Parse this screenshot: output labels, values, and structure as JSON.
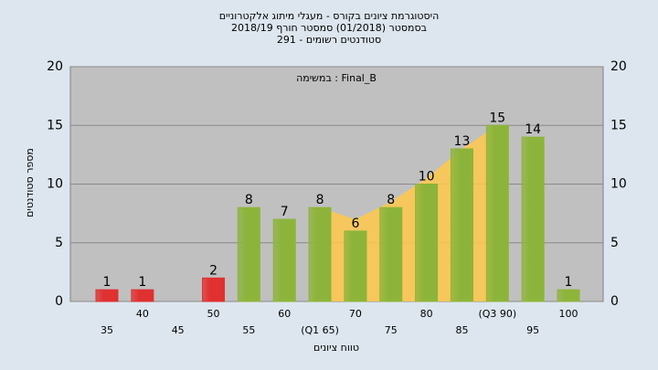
{
  "chart_data": {
    "type": "bar",
    "title": [
      "היסטוגרמת ציונים בקורס - מעגלי מיתוג אלקטרוניים",
      "בסמסטר (01/2018)  סמסטר חורף 2018/19",
      "סטודנטים רשומים - 291"
    ],
    "annotation": "במשימה : Final_B",
    "y_label": "מספר סטודנטים",
    "x_label": "טווח ציונים",
    "categories": [
      "35",
      "40",
      "45",
      "50",
      "55",
      "60",
      "(Q1 65)",
      "70",
      "75",
      "80",
      "85",
      "(Q3 90)",
      "95",
      "100"
    ],
    "values": [
      1,
      1,
      null,
      2,
      8,
      7,
      8,
      6,
      8,
      10,
      13,
      15,
      14,
      1
    ],
    "colors": [
      "#e03030",
      "#e03030",
      "#e03030",
      "#e03030",
      "#8db43a",
      "#8db43a",
      "#8db43a",
      "#8db43a",
      "#8db43a",
      "#8db43a",
      "#8db43a",
      "#8db43a",
      "#8db43a",
      "#8db43a"
    ],
    "area": {
      "color": "#ffc84a",
      "values": [
        null,
        null,
        null,
        null,
        null,
        null,
        8,
        7,
        8.5,
        10.5,
        13,
        15,
        null,
        null
      ]
    },
    "ylim": [
      0,
      20
    ],
    "yticks": [
      0,
      5,
      10,
      15,
      20
    ],
    "grid": true
  }
}
